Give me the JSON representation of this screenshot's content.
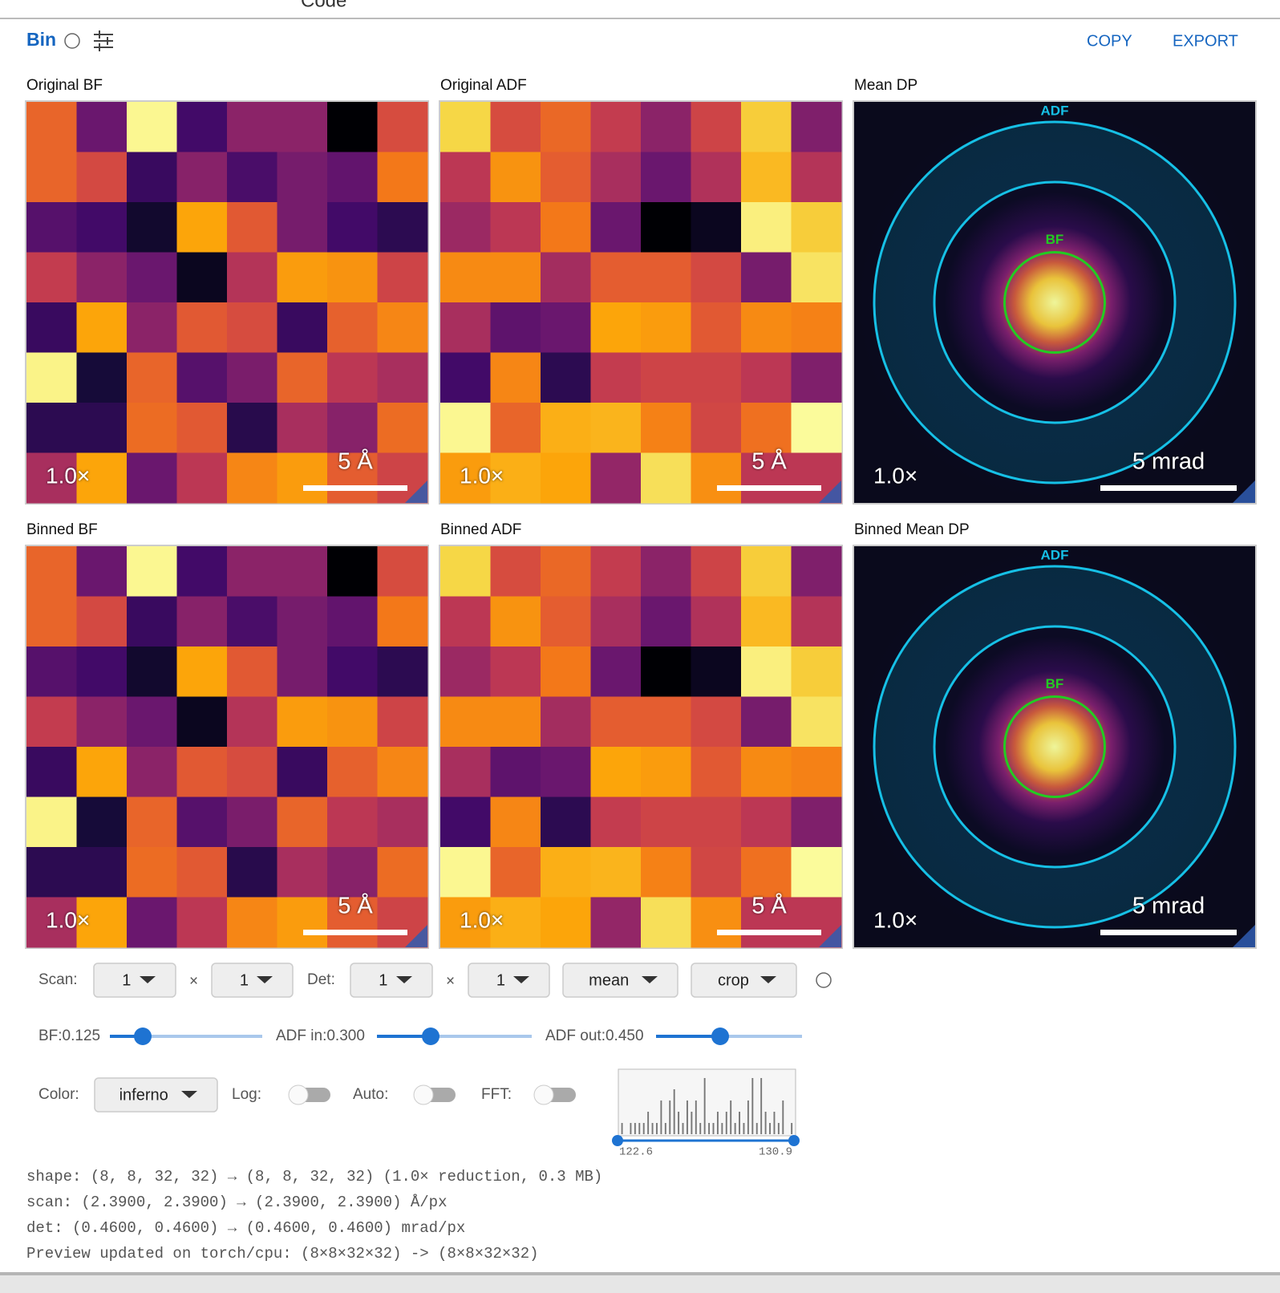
{
  "toolbar_label": "Code",
  "header": {
    "title": "Bin",
    "actions": [
      "COPY",
      "EXPORT"
    ]
  },
  "colormap": "inferno",
  "panels": [
    {
      "title": "Original BF",
      "kind": "heatmap",
      "zoom_label": "1.0×",
      "scale_label": "5 Å",
      "values": [
        [
          0.65,
          0.3,
          0.98,
          0.2,
          0.38,
          0.38,
          0.0,
          0.58
        ],
        [
          0.65,
          0.57,
          0.18,
          0.37,
          0.22,
          0.33,
          0.28,
          0.7
        ],
        [
          0.25,
          0.2,
          0.08,
          0.8,
          0.62,
          0.33,
          0.2,
          0.15
        ],
        [
          0.52,
          0.38,
          0.3,
          0.05,
          0.48,
          0.78,
          0.76,
          0.55
        ],
        [
          0.18,
          0.8,
          0.38,
          0.62,
          0.58,
          0.18,
          0.64,
          0.73
        ],
        [
          0.97,
          0.1,
          0.65,
          0.25,
          0.34,
          0.65,
          0.5,
          0.45
        ],
        [
          0.15,
          0.15,
          0.67,
          0.62,
          0.14,
          0.45,
          0.37,
          0.67
        ],
        [
          0.45,
          0.8,
          0.3,
          0.5,
          0.73,
          0.78,
          0.63,
          0.55
        ]
      ]
    },
    {
      "title": "Original ADF",
      "kind": "heatmap",
      "zoom_label": "1.0×",
      "scale_label": "5 Å",
      "values": [
        [
          0.9,
          0.58,
          0.66,
          0.52,
          0.38,
          0.55,
          0.88,
          0.35
        ],
        [
          0.5,
          0.76,
          0.63,
          0.45,
          0.3,
          0.47,
          0.84,
          0.48
        ],
        [
          0.42,
          0.5,
          0.7,
          0.3,
          0.0,
          0.05,
          0.96,
          0.88
        ],
        [
          0.74,
          0.74,
          0.44,
          0.63,
          0.63,
          0.57,
          0.33,
          0.93
        ],
        [
          0.45,
          0.27,
          0.3,
          0.8,
          0.78,
          0.62,
          0.74,
          0.72
        ],
        [
          0.2,
          0.73,
          0.15,
          0.52,
          0.55,
          0.55,
          0.5,
          0.35
        ],
        [
          0.98,
          0.65,
          0.82,
          0.83,
          0.72,
          0.56,
          0.68,
          0.99
        ],
        [
          0.78,
          0.82,
          0.8,
          0.4,
          0.92,
          0.75,
          0.5,
          0.5
        ]
      ]
    },
    {
      "title": "Mean DP",
      "kind": "dp",
      "zoom_label": "1.0×",
      "scale_label": "5 mrad",
      "ring_labels": [
        "ADF",
        "BF"
      ]
    },
    {
      "title": "Binned BF",
      "kind": "heatmap",
      "zoom_label": "1.0×",
      "scale_label": "5 Å",
      "values": [
        [
          0.65,
          0.3,
          0.98,
          0.2,
          0.38,
          0.38,
          0.0,
          0.58
        ],
        [
          0.65,
          0.57,
          0.18,
          0.37,
          0.22,
          0.33,
          0.28,
          0.7
        ],
        [
          0.25,
          0.2,
          0.08,
          0.8,
          0.62,
          0.33,
          0.2,
          0.15
        ],
        [
          0.52,
          0.38,
          0.3,
          0.05,
          0.48,
          0.78,
          0.76,
          0.55
        ],
        [
          0.18,
          0.8,
          0.38,
          0.62,
          0.58,
          0.18,
          0.64,
          0.73
        ],
        [
          0.97,
          0.1,
          0.65,
          0.25,
          0.34,
          0.65,
          0.5,
          0.45
        ],
        [
          0.15,
          0.15,
          0.67,
          0.62,
          0.14,
          0.45,
          0.37,
          0.67
        ],
        [
          0.45,
          0.8,
          0.3,
          0.5,
          0.73,
          0.78,
          0.63,
          0.55
        ]
      ]
    },
    {
      "title": "Binned ADF",
      "kind": "heatmap",
      "zoom_label": "1.0×",
      "scale_label": "5 Å",
      "values": [
        [
          0.9,
          0.58,
          0.66,
          0.52,
          0.38,
          0.55,
          0.88,
          0.35
        ],
        [
          0.5,
          0.76,
          0.63,
          0.45,
          0.3,
          0.47,
          0.84,
          0.48
        ],
        [
          0.42,
          0.5,
          0.7,
          0.3,
          0.0,
          0.05,
          0.96,
          0.88
        ],
        [
          0.74,
          0.74,
          0.44,
          0.63,
          0.63,
          0.57,
          0.33,
          0.93
        ],
        [
          0.45,
          0.27,
          0.3,
          0.8,
          0.78,
          0.62,
          0.74,
          0.72
        ],
        [
          0.2,
          0.73,
          0.15,
          0.52,
          0.55,
          0.55,
          0.5,
          0.35
        ],
        [
          0.98,
          0.65,
          0.82,
          0.83,
          0.72,
          0.56,
          0.68,
          0.99
        ],
        [
          0.78,
          0.82,
          0.8,
          0.4,
          0.92,
          0.75,
          0.5,
          0.5
        ]
      ]
    },
    {
      "title": "Binned Mean DP",
      "kind": "dp",
      "zoom_label": "1.0×",
      "scale_label": "5 mrad",
      "ring_labels": [
        "ADF",
        "BF"
      ]
    }
  ],
  "controls": {
    "scan_label": "Scan:",
    "det_label": "Det:",
    "times": "×",
    "scan": [
      "1",
      "1"
    ],
    "det": [
      "1",
      "1"
    ],
    "reduce": "mean",
    "edge": "crop",
    "sliders": [
      {
        "label": "BF:0.125",
        "value": 0.125
      },
      {
        "label": "ADF in:0.300",
        "value": 0.3
      },
      {
        "label": "ADF out:0.450",
        "value": 0.45
      }
    ],
    "color_label": "Color:",
    "color": "inferno",
    "toggles": [
      {
        "label": "Log:",
        "on": false
      },
      {
        "label": "Auto:",
        "on": false
      },
      {
        "label": "FFT:",
        "on": false
      }
    ],
    "histogram": {
      "counts": [
        1,
        0,
        1,
        1,
        1,
        1,
        2,
        1,
        1,
        3,
        1,
        3,
        4,
        2,
        1,
        3,
        2,
        3,
        1,
        5,
        1,
        1,
        2,
        1,
        2,
        3,
        1,
        2,
        1,
        3,
        5,
        1,
        5,
        2,
        1,
        2,
        1,
        3,
        0,
        1
      ],
      "min": 122.6,
      "max": 130.9
    }
  },
  "info_lines": [
    "shape: (8, 8, 32, 32) → (8, 8, 32, 32) (1.0× reduction, 0.3 MB)",
    "scan: (2.3900, 2.3900) → (2.3900, 2.3900) Å/px",
    "det: (0.4600, 0.4600) → (0.4600, 0.4600) mrad/px",
    "Preview updated on torch/cpu: (8×8×32×32) -> (8×8×32×32)"
  ]
}
